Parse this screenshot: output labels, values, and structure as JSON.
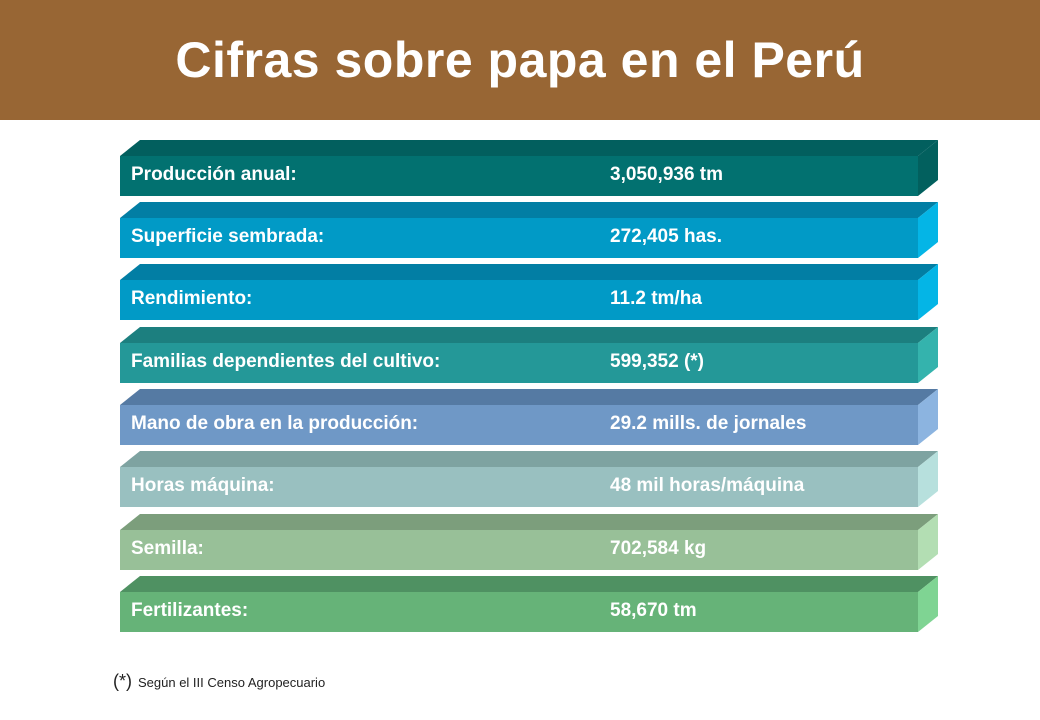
{
  "header": {
    "title": "Cifras sobre papa en el Perú"
  },
  "rows": [
    {
      "label": "Producción anual:",
      "value": "3,050,936 tm",
      "colors": {
        "front": "#027170",
        "top": "#025f5e",
        "side": "#02605e"
      }
    },
    {
      "label": "Superficie sembrada:",
      "value": "272,405 has.",
      "colors": {
        "front": "#019ac6",
        "top": "#027ea4",
        "side": "#04b5e6"
      }
    },
    {
      "label": "Rendimiento:",
      "value": "11.2 tm/ha",
      "colors": {
        "front": "#019ac6",
        "top": "#027ea4",
        "side": "#04b5e6"
      }
    },
    {
      "label": "Familias dependientes del cultivo:",
      "value": "599,352 (*)",
      "colors": {
        "front": "#249898",
        "top": "#1c7f7f",
        "side": "#34b3ad"
      }
    },
    {
      "label": "Mano de obra en la producción:",
      "value": "29.2 mills. de  jornales",
      "colors": {
        "front": "#6f98c6",
        "top": "#557aa3",
        "side": "#8cb4e0"
      }
    },
    {
      "label": "Horas máquina:",
      "value": "48 mil horas/máquina",
      "colors": {
        "front": "#99c0c0",
        "top": "#7ea3a1",
        "side": "#b7e0dd"
      }
    },
    {
      "label": "Semilla:",
      "value": "702,584 kg",
      "colors": {
        "front": "#98c098",
        "top": "#7c9e7c",
        "side": "#b3deb3"
      }
    },
    {
      "label": "Fertilizantes:",
      "value": "58,670 tm",
      "colors": {
        "front": "#66b378",
        "top": "#4f9162",
        "side": "#7fd493"
      }
    }
  ],
  "footnote": {
    "mark": "(*)",
    "text": "Según el III Censo Agropecuario"
  }
}
